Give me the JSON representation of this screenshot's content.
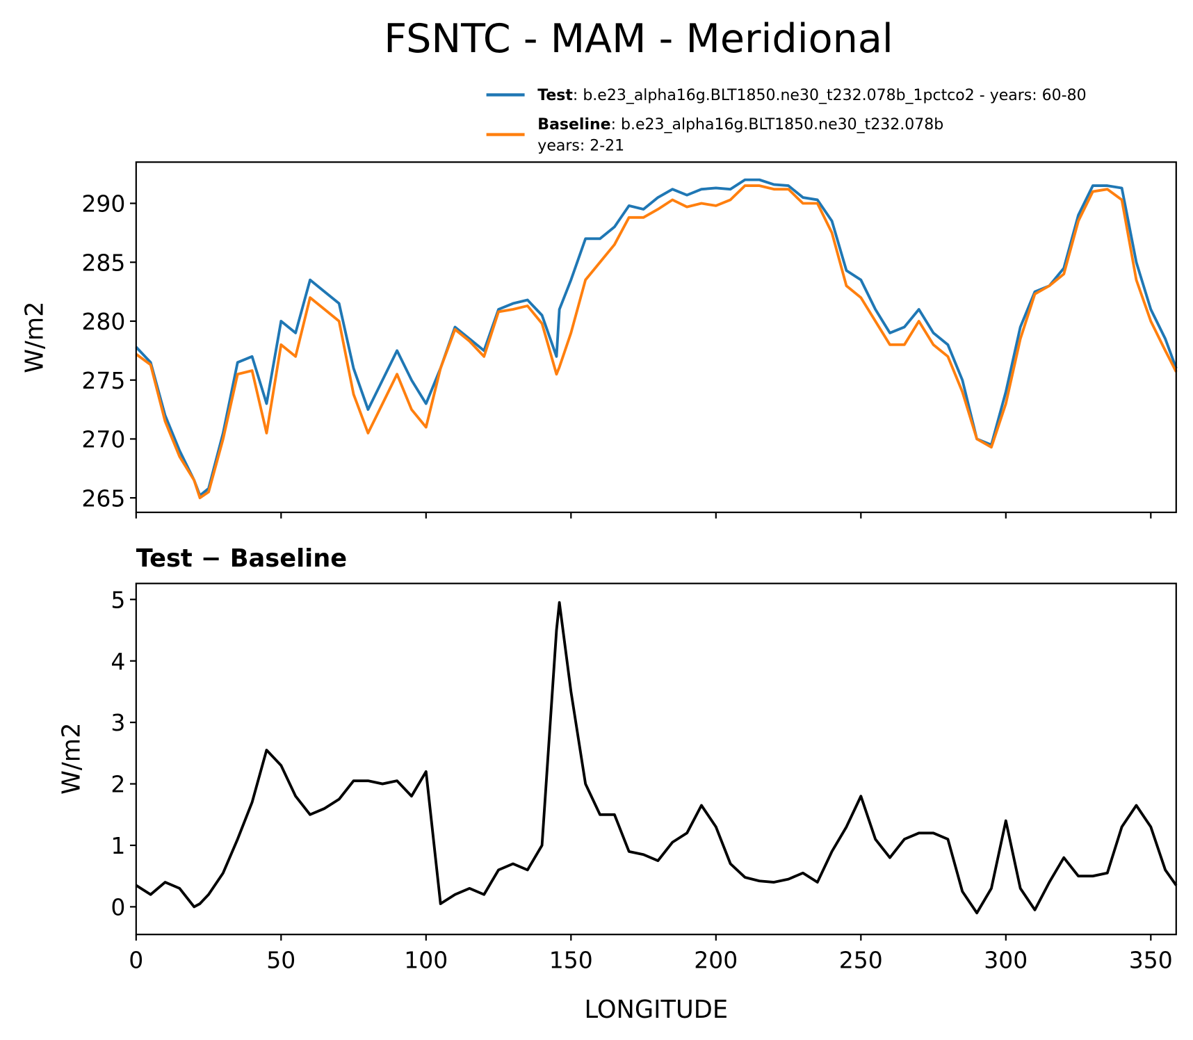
{
  "chart_data": [
    {
      "type": "line",
      "title": "FSNTC - MAM - Meridional",
      "ylabel": "W/m2",
      "x": [
        0,
        5,
        10,
        15,
        20,
        22,
        25,
        30,
        35,
        40,
        45,
        50,
        55,
        60,
        65,
        70,
        75,
        80,
        85,
        90,
        95,
        100,
        105,
        110,
        115,
        120,
        125,
        130,
        135,
        140,
        145,
        146,
        150,
        155,
        160,
        165,
        170,
        175,
        180,
        185,
        190,
        195,
        200,
        205,
        210,
        215,
        220,
        225,
        230,
        235,
        240,
        245,
        250,
        255,
        260,
        265,
        270,
        275,
        280,
        285,
        290,
        295,
        300,
        305,
        310,
        315,
        320,
        325,
        330,
        335,
        340,
        345,
        350,
        355,
        358.75
      ],
      "series": [
        {
          "name": "Test",
          "description": [
            ": b.e23_alpha16g.BLT1850.ne30_t232.078b_1pctco2 - years: 60-80"
          ],
          "color": "#1f77b4",
          "values": [
            277.8,
            276.5,
            272,
            269,
            266.5,
            265.2,
            265.8,
            270.5,
            276.5,
            277,
            273,
            280,
            279,
            283.5,
            282.5,
            281.5,
            276,
            272.5,
            275,
            277.5,
            275,
            273,
            276,
            279.5,
            278.5,
            277.5,
            281,
            281.5,
            281.8,
            280.5,
            277,
            281,
            283.5,
            287,
            287,
            288,
            289.8,
            289.5,
            290.5,
            291.2,
            290.7,
            291.2,
            291.3,
            291.2,
            292,
            292,
            291.6,
            291.5,
            290.5,
            290.3,
            288.5,
            284.3,
            283.5,
            281,
            279,
            279.5,
            281,
            279,
            278,
            275,
            270,
            269.5,
            274,
            279.5,
            282.5,
            283,
            284.5,
            289,
            291.5,
            291.5,
            291.3,
            285,
            281,
            278.5,
            276
          ]
        },
        {
          "name": "Baseline",
          "description": [
            ": b.e23_alpha16g.BLT1850.ne30_t232.078b",
            "years: 2-21"
          ],
          "color": "#ff7f0e",
          "values": [
            277.2,
            276.3,
            271.5,
            268.5,
            266.5,
            265,
            265.5,
            270,
            275.5,
            275.8,
            270.5,
            278,
            277,
            282,
            281,
            280,
            273.8,
            270.5,
            273,
            275.5,
            272.5,
            271,
            276,
            279.3,
            278.3,
            277,
            280.8,
            281,
            281.3,
            279.8,
            275.5,
            276.1,
            279,
            283.5,
            285,
            286.5,
            288.8,
            288.8,
            289.5,
            290.3,
            289.7,
            290,
            289.8,
            290.3,
            291.5,
            291.5,
            291.2,
            291.2,
            290,
            290,
            287.5,
            283,
            282,
            280,
            278,
            278,
            280,
            278,
            277,
            274,
            270,
            269.3,
            273,
            278.5,
            282.3,
            283,
            284,
            288.5,
            291,
            291.2,
            290.3,
            283.5,
            280,
            277.5,
            275.7
          ]
        }
      ],
      "xlim": [
        0,
        358.75
      ],
      "xticks": [
        0,
        50,
        100,
        150,
        200,
        250,
        300,
        350
      ],
      "xticklabels": false,
      "ylim": [
        263.77,
        293.5
      ],
      "yticks": [
        265,
        270,
        275,
        280,
        285,
        290
      ]
    },
    {
      "type": "line",
      "title": "Test − Baseline",
      "xlabel": "LONGITUDE",
      "ylabel": "W/m2",
      "x": [
        0,
        5,
        10,
        15,
        20,
        22,
        25,
        30,
        35,
        40,
        45,
        50,
        55,
        60,
        65,
        70,
        75,
        80,
        85,
        90,
        95,
        100,
        105,
        110,
        115,
        120,
        125,
        130,
        135,
        140,
        145,
        146,
        150,
        155,
        160,
        165,
        170,
        175,
        180,
        185,
        190,
        195,
        200,
        205,
        210,
        215,
        220,
        225,
        230,
        235,
        240,
        245,
        250,
        255,
        260,
        265,
        270,
        275,
        280,
        285,
        290,
        295,
        300,
        305,
        310,
        315,
        320,
        325,
        330,
        335,
        340,
        345,
        350,
        355,
        358.75
      ],
      "series": [
        {
          "color": "#000000",
          "values": [
            0.35,
            0.2,
            0.4,
            0.3,
            0,
            0.05,
            0.2,
            0.55,
            1.1,
            1.7,
            2.55,
            2.3,
            1.8,
            1.5,
            1.6,
            1.75,
            2.05,
            2.05,
            2.0,
            2.05,
            1.8,
            2.2,
            0.05,
            0.2,
            0.3,
            0.2,
            0.6,
            0.7,
            0.6,
            1.0,
            4.5,
            4.95,
            3.5,
            2.0,
            1.5,
            1.5,
            0.9,
            0.85,
            0.75,
            1.05,
            1.2,
            1.65,
            1.3,
            0.7,
            0.48,
            0.42,
            0.4,
            0.45,
            0.55,
            0.4,
            0.9,
            1.3,
            1.8,
            1.1,
            0.8,
            1.1,
            1.2,
            1.2,
            1.1,
            0.25,
            -0.1,
            0.3,
            1.4,
            0.3,
            -0.05,
            0.4,
            0.8,
            0.5,
            0.5,
            0.55,
            1.3,
            1.65,
            1.3,
            0.6,
            0.35
          ]
        }
      ],
      "xlim": [
        0,
        358.75
      ],
      "xticks": [
        0,
        50,
        100,
        150,
        200,
        250,
        300,
        350
      ],
      "xticklabels": true,
      "ylim": [
        -0.45,
        5.26
      ],
      "yticks": [
        0,
        1,
        2,
        3,
        4,
        5
      ]
    }
  ]
}
